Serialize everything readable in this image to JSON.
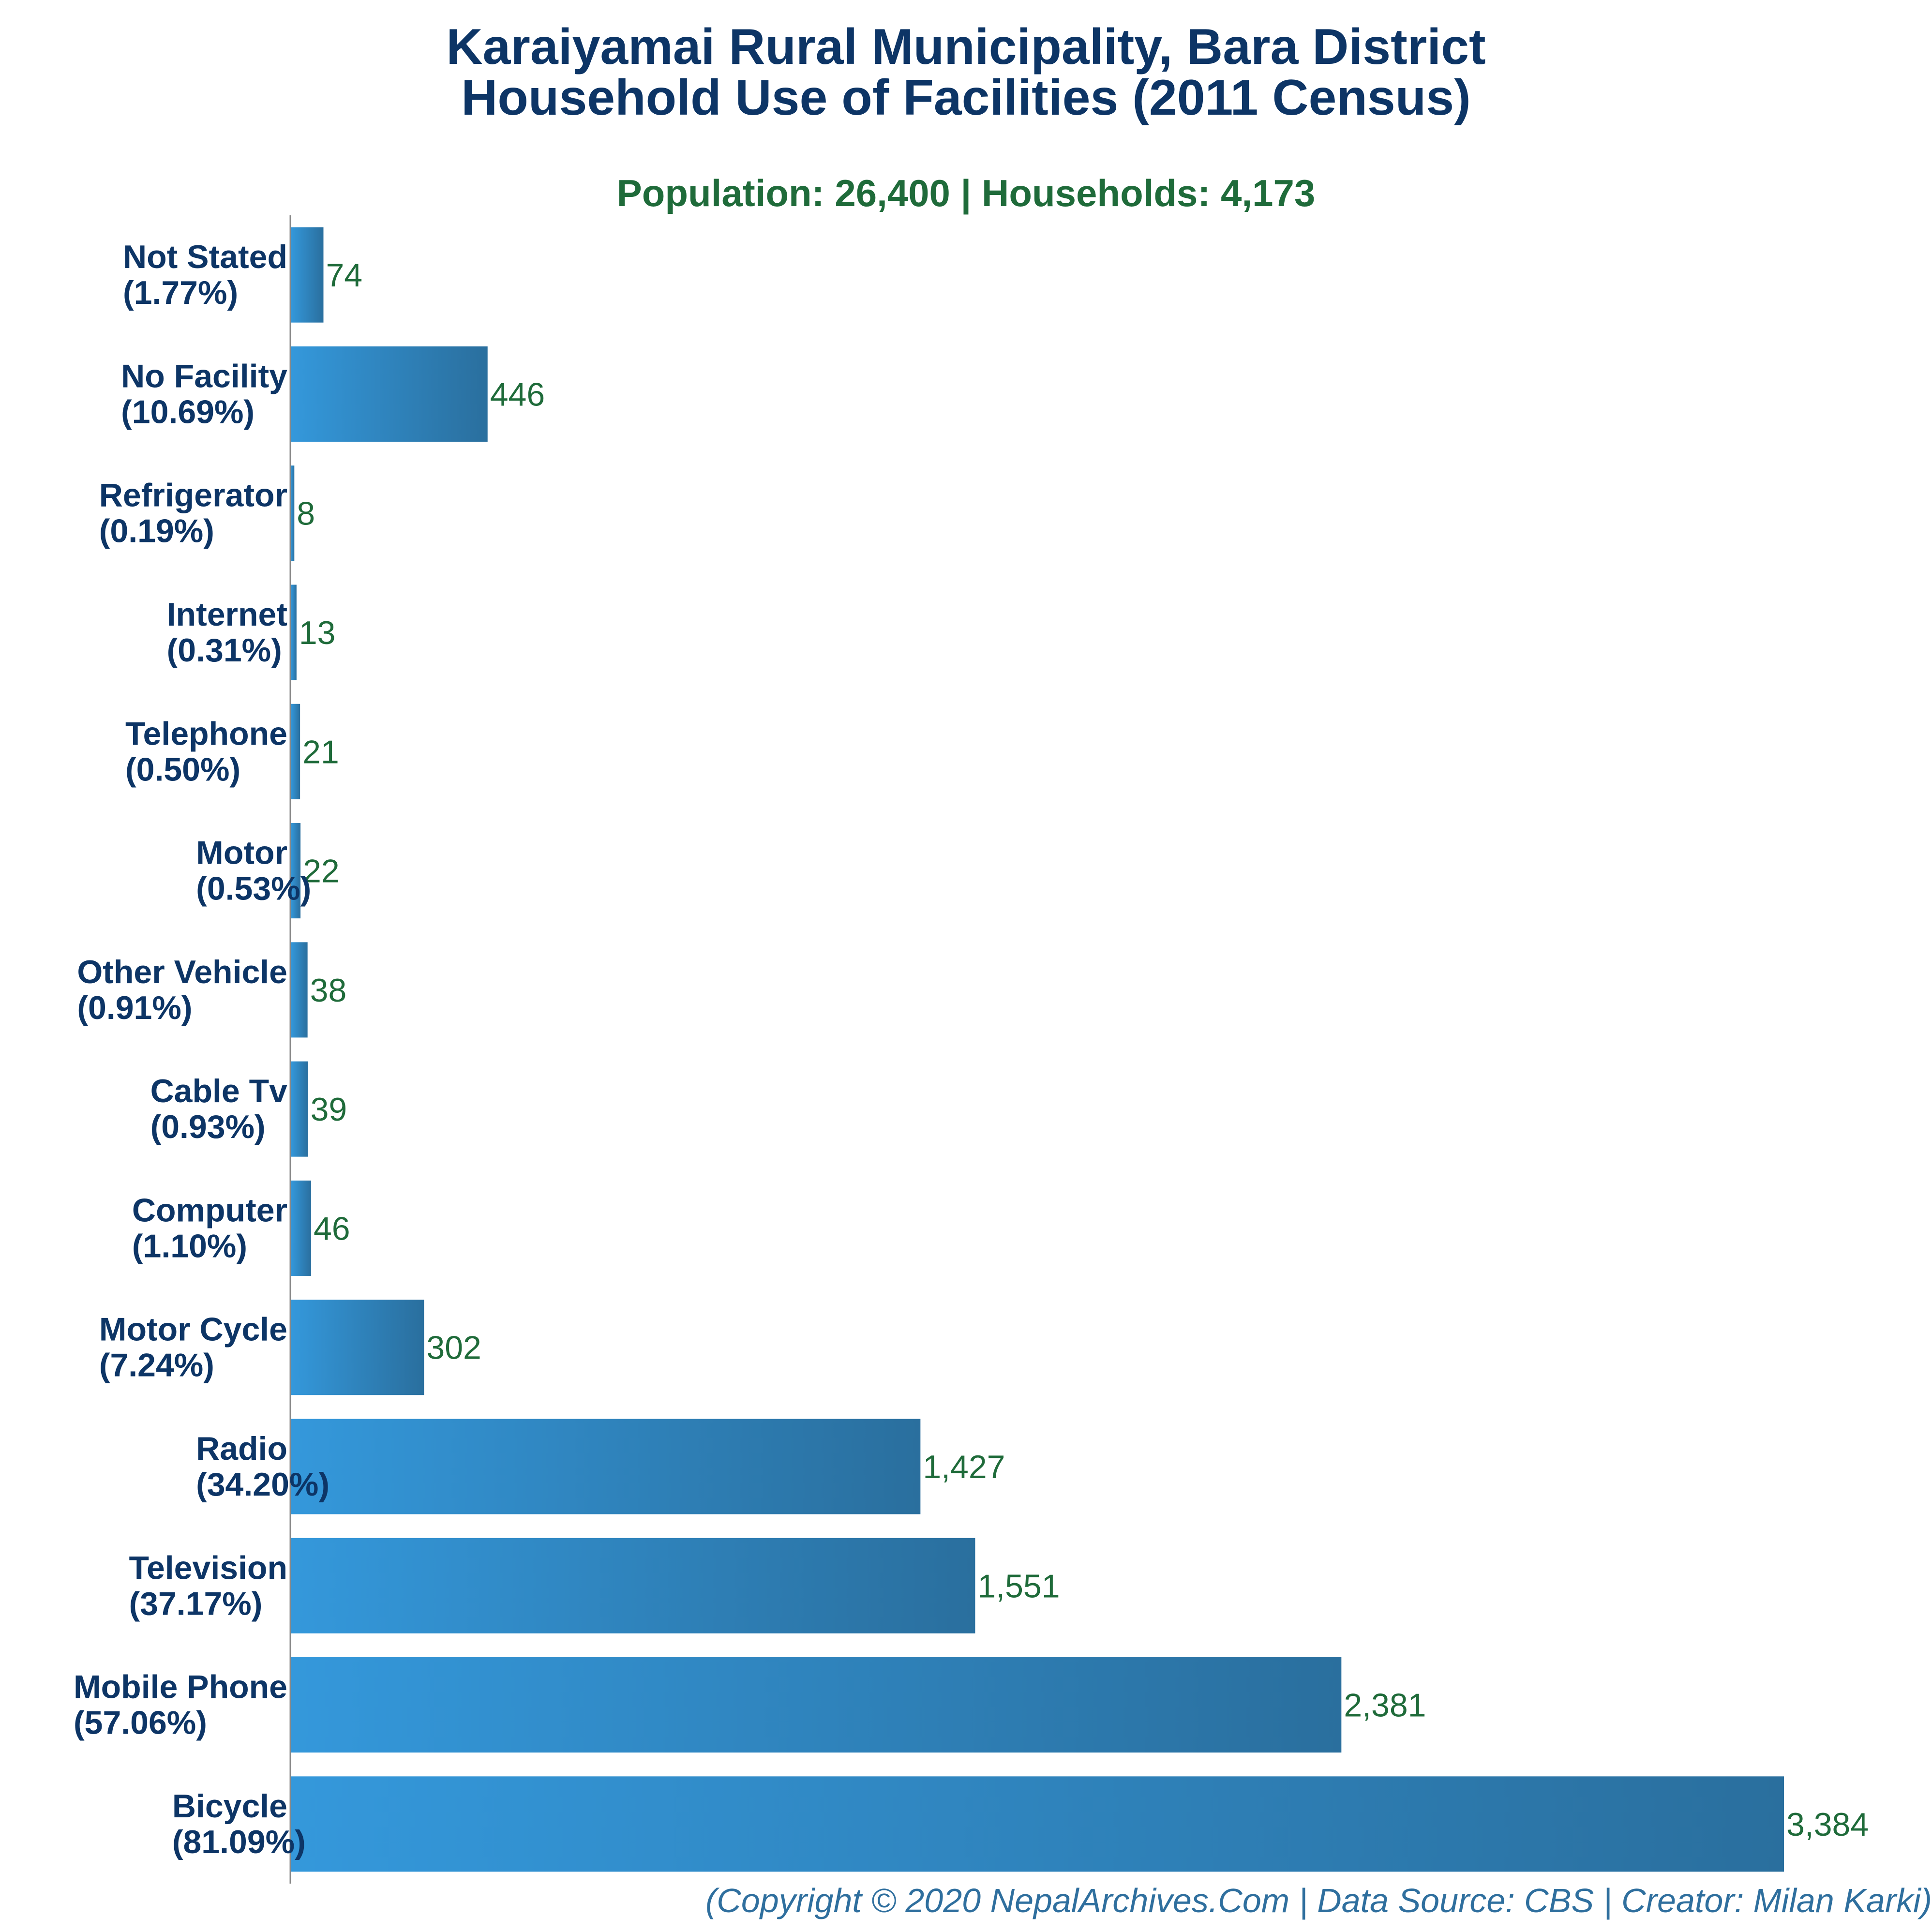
{
  "chart_data": {
    "type": "bar",
    "orientation": "horizontal",
    "title_lines": [
      "Karaiyamai Rural Municipality, Bara District",
      "Household Use of Facilities (2011 Census)"
    ],
    "subtitle": "Population: 26,400 | Households: 4,173",
    "footer": "(Copyright © 2020 NepalArchives.Com | Data Source: CBS | Creator: Milan Karki)",
    "categories": [
      "Not Stated",
      "No Facility",
      "Refrigerator",
      "Internet",
      "Telephone",
      "Motor",
      "Other Vehicle",
      "Cable Tv",
      "Computer",
      "Motor Cycle",
      "Radio",
      "Television",
      "Mobile Phone",
      "Bicycle"
    ],
    "percent_labels": [
      "(1.77%)",
      "(10.69%)",
      "(0.19%)",
      "(0.31%)",
      "(0.50%)",
      "(0.53%)",
      "(0.91%)",
      "(0.93%)",
      "(1.10%)",
      "(7.24%)",
      "(34.20%)",
      "(37.17%)",
      "(57.06%)",
      "(81.09%)"
    ],
    "values": [
      74,
      446,
      8,
      13,
      21,
      22,
      38,
      39,
      46,
      302,
      1427,
      1551,
      2381,
      3384
    ],
    "value_labels": [
      "74",
      "446",
      "8",
      "13",
      "21",
      "22",
      "38",
      "39",
      "46",
      "302",
      "1,427",
      "1,551",
      "2,381",
      "3,384"
    ],
    "xlim": [
      0,
      3384
    ],
    "grid": false,
    "colors": {
      "bar_start": "#3498db",
      "bar_end": "#2a6f9e",
      "title": "#0d3566",
      "subtitle": "#1f6b3a",
      "value_label": "#1f6b3a",
      "footer": "#2f6f9e",
      "axis": "#888888"
    }
  }
}
